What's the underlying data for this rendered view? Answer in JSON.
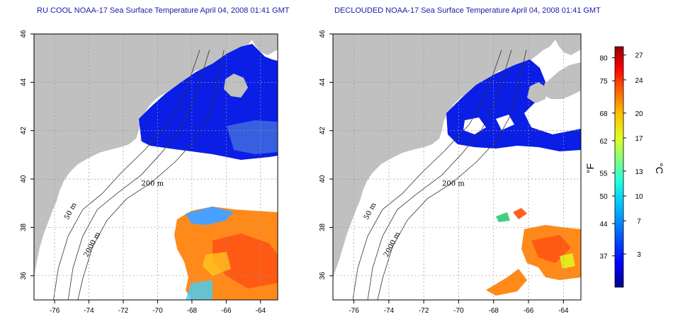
{
  "panels": [
    {
      "id": "left",
      "title": "RU COOL NOAA-17 Sea Surface Temperature April 04, 2008 01:41 GMT",
      "contour_labels": [
        "50 m",
        "200 m",
        "2000 m"
      ]
    },
    {
      "id": "right",
      "title": "DECLOUDED NOAA-17 Sea Surface Temperature April 04, 2008 01:41 GMT",
      "contour_labels": [
        "50 m",
        "200 m",
        "2000 m"
      ]
    }
  ],
  "axes": {
    "lon_ticks": [
      "-76",
      "-74",
      "-72",
      "-70",
      "-68",
      "-66",
      "-64"
    ],
    "lon_values": [
      -76,
      -74,
      -72,
      -70,
      -68,
      -66,
      -64
    ],
    "lat_ticks": [
      "46",
      "44",
      "42",
      "40",
      "38",
      "36"
    ],
    "lat_values": [
      46,
      44,
      42,
      40,
      38,
      36
    ],
    "lon_range": [
      -77.2,
      -63.0
    ],
    "lat_range": [
      35.0,
      46.0
    ],
    "grid": "dotted"
  },
  "colorbar": {
    "fahrenheit_label": "°F",
    "celsius_label": "°C",
    "fahrenheit_ticks": [
      "80",
      "75",
      "68",
      "62",
      "55",
      "50",
      "44",
      "37"
    ],
    "celsius_ticks": [
      "27",
      "24",
      "20",
      "17",
      "13",
      "10",
      "7",
      "3"
    ],
    "celsius_values": [
      27,
      24,
      20,
      17,
      13,
      10,
      7,
      3
    ],
    "fahrenheit_values": [
      80,
      75,
      68,
      62,
      55,
      50,
      44,
      37
    ],
    "range_c": [
      -1,
      28
    ],
    "colors": [
      "#00008f",
      "#0000ff",
      "#0060ff",
      "#00c0ff",
      "#20ffdf",
      "#80ff80",
      "#dfff20",
      "#ffc000",
      "#ff6000",
      "#ff0000",
      "#8f0000"
    ]
  },
  "colors": {
    "land": "#c0c0c0",
    "cold_water": "#0a1ee6",
    "title": "#1a1aa8"
  }
}
